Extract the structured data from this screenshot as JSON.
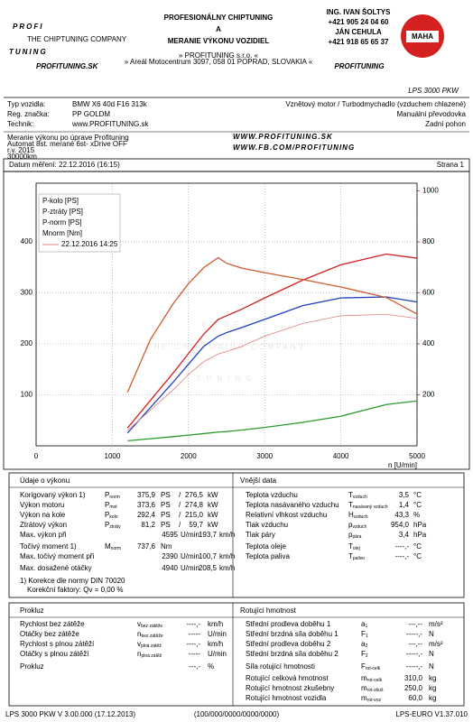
{
  "header": {
    "logo": [
      "PROFI",
      "TUNING"
    ],
    "logo_tagline": "THE CHIPTUNING COMPANY",
    "logo_small": "PROFITUNING.SK",
    "title": [
      "PROFESIONÁLNY CHIPTUNING",
      "A",
      "MERANIE VÝKONU VOZIDIEL"
    ],
    "address": [
      "» PROFITUNING s.r.o. «",
      "» Areál Motocentrum 3097, 058 01 POPRAD, SLOVAKIA «"
    ],
    "contacts": [
      "ING. IVAN ŠOLTYS",
      "+421 905 24 04 60",
      "JÁN CEHULA",
      "+421 918 65 65 37"
    ],
    "brand": "PROFITUNING",
    "maha": "MAHA",
    "model": "LPS 3000 PKW"
  },
  "vehicle": [
    [
      "Typ vozidla:",
      "BMW X6 40d F16 313k",
      "Vznětový motor / Turbodmychadlo (vzduchem chlazené)"
    ],
    [
      "Reg. značka:",
      "PP GOLDM",
      "Manuální převodovka"
    ],
    [
      "Technik:",
      "www.PROFITUNING.sk",
      "Zadní pohon"
    ]
  ],
  "notes": [
    "Meranie výkonu po úprave Profituning",
    "Automat 8st. merané 6st- xDrive OFF",
    "r.v. 2015",
    "30000km"
  ],
  "web": [
    "WWW.PROFITUNING.SK",
    "WWW.FB.COM/PROFITUNING"
  ],
  "date_bar": {
    "date": "Datum měření: 22.12.2016 (16:15)",
    "page": "Strana 1"
  },
  "chart_data": {
    "type": "line",
    "x_label": "n [U/min]",
    "watermark": [
      "PROFI",
      "TUNING",
      "THE CHIPTUNING COMPANY"
    ],
    "x": [
      1200,
      1500,
      1800,
      2000,
      2200,
      2390,
      2500,
      2700,
      3000,
      3500,
      4000,
      4595,
      5000
    ],
    "xlim": [
      0,
      5000
    ],
    "xticks": [
      0,
      1000,
      2000,
      3000,
      4000,
      5000
    ],
    "ylim": [
      0,
      515
    ],
    "yticks": [
      100,
      200,
      300,
      400
    ],
    "y2lim": [
      0,
      1030
    ],
    "y2ticks": [
      200,
      400,
      600,
      800,
      1000
    ],
    "y2color": "#d05a30",
    "grid": true,
    "legend": "top-left",
    "series": [
      {
        "name": "P-kolo [PS]",
        "color": "#1f3fbf",
        "values": [
          25,
          75,
          125,
          160,
          195,
          215,
          222,
          232,
          248,
          275,
          290,
          292,
          282
        ]
      },
      {
        "name": "P-ztráty [PS]",
        "color": "#2a9a2a",
        "values": [
          10,
          14,
          18,
          21,
          24,
          27,
          28,
          31,
          36,
          46,
          58,
          81,
          88
        ]
      },
      {
        "name": "P-norm [PS]",
        "color": "#d42020",
        "values": [
          35,
          89,
          143,
          181,
          219,
          248,
          255,
          268,
          290,
          325,
          355,
          376,
          368
        ]
      },
      {
        "name": "Mnorm [Nm]",
        "color": "#d05a30",
        "axis": "y2",
        "values": [
          210,
          417,
          558,
          636,
          699,
          738,
          716,
          697,
          679,
          652,
          623,
          582,
          517
        ]
      },
      {
        "name": "22.12.2016 14:25",
        "color": "#e08080",
        "thin": true,
        "values": [
          30,
          70,
          110,
          140,
          165,
          180,
          185,
          195,
          215,
          240,
          255,
          258,
          250
        ]
      }
    ]
  },
  "performance": {
    "title": "Údaje o výkonu",
    "rows": [
      {
        "label": "Korigovaný výkon 1)",
        "sym": "P",
        "sub": "norm",
        "value": "375,9",
        "unit": "PS",
        "sep": "/",
        "value2": "276,5",
        "unit2": "kW",
        "color": "#d42020"
      },
      {
        "label": "Výkon motoru",
        "sym": "P",
        "sub": "mot",
        "value": "373,6",
        "unit": "PS",
        "sep": "/",
        "value2": "274,8",
        "unit2": "kW",
        "color": "#d42020"
      },
      {
        "label": "Výkon na kole",
        "sym": "P",
        "sub": "kolo",
        "value": "292,4",
        "unit": "PS",
        "sep": "/",
        "value2": "215,0",
        "unit2": "kW",
        "color": "#1f3fbf"
      },
      {
        "label": "Ztrátový výkon",
        "sym": "P",
        "sub": "ztráty",
        "value": "81,2",
        "unit": "PS",
        "sep": "/",
        "value2": "59,7",
        "unit2": "kW",
        "color": "#2a9a2a"
      },
      {
        "label": "Max. výkon při",
        "value": "4595",
        "unit": "U/min",
        "value2": "193,7",
        "unit2": "km/h",
        "color": "#000000"
      },
      {
        "label": "Točivý moment 1)",
        "sym": "M",
        "sub": "norm",
        "value": "737,6",
        "unit": "Nm",
        "color": "#d42020"
      },
      {
        "label": "Max. točivý moment při",
        "value": "2390",
        "unit": "U/min",
        "value2": "100,7",
        "unit2": "km/h",
        "color": "#000000"
      },
      {
        "label": "Max. dosažené otáčky",
        "value": "4940",
        "unit": "U/min",
        "value2": "208,5",
        "unit2": "km/h",
        "color": "#000000"
      }
    ],
    "notes": [
      "1) Korekce dle normy DIN 70020",
      "Korekční faktory: Qv = 0,00 %"
    ]
  },
  "external": {
    "title": "Vnější data",
    "rows": [
      {
        "label": "Teplota vzduchu",
        "sym": "T",
        "sub": "vzduch",
        "value": "3,5",
        "unit": "°C"
      },
      {
        "label": "Teplota nasávaného vzduchu",
        "sym": "T",
        "sub": "nasávaný vzduch",
        "value": "1,4",
        "unit": "°C"
      },
      {
        "label": "Relativní vlhkost vzduchu",
        "sym": "H",
        "sub": "vzduch",
        "value": "43,3",
        "unit": "%"
      },
      {
        "label": "Tlak vzduchu",
        "sym": "p",
        "sub": "vzduch",
        "value": "954,0",
        "unit": "hPa"
      },
      {
        "label": "Tlak páry",
        "sym": "p",
        "sub": "pára",
        "value": "3,4",
        "unit": "hPa"
      },
      {
        "label": "Teplota oleje",
        "sym": "T",
        "sub": "olej",
        "value": "----,-",
        "unit": "°C"
      },
      {
        "label": "Teplota paliva",
        "sym": "T",
        "sub": "palivo",
        "value": "----,-",
        "unit": "°C"
      }
    ]
  },
  "slip": {
    "title": "Prokluz",
    "rows": [
      {
        "label": "Rychlost bez zátěže",
        "sym": "v",
        "sub": "bez zátěže",
        "value": "----,-",
        "unit": "km/h"
      },
      {
        "label": "Otáčky bez zátěže",
        "sym": "n",
        "sub": "bez zátěže",
        "value": "-----",
        "unit": "U/min"
      },
      {
        "label": "Rychlost s plnou zátěží",
        "sym": "v",
        "sub": "plná zátěž",
        "value": "----,-",
        "unit": "km/h"
      },
      {
        "label": "Otáčky s plnou zátěží",
        "sym": "n",
        "sub": "plná zátěž",
        "value": "-----",
        "unit": "U/min"
      },
      {
        "label": "Prokluz",
        "value": "---,-",
        "unit": "%"
      }
    ]
  },
  "rotating": {
    "title": "Rotujíci hmotnost",
    "rows": [
      {
        "label": "Střední prodleva doběhu 1",
        "sym": "a",
        "sub": "1",
        "value": "---,--",
        "unit": "m/s²"
      },
      {
        "label": "Střední brzdná síla doběhu 1",
        "sym": "F",
        "sub": "1",
        "value": "-----,-",
        "unit": "N"
      },
      {
        "label": "Střední prodleva doběhu 2",
        "sym": "a",
        "sub": "2",
        "value": "---,--",
        "unit": "m/s²"
      },
      {
        "label": "Střední brzdná síla doběhu 2",
        "sym": "F",
        "sub": "2",
        "value": "-----,-",
        "unit": "N"
      },
      {
        "label": "Síla rotující hmotnosti",
        "sym": "F",
        "sub": "rot-celk",
        "value": "-----,-",
        "unit": "N"
      },
      {
        "label": "Rotující celková hmotnost",
        "sym": "m",
        "sub": "rot-celk",
        "value": "310,0",
        "unit": "kg"
      },
      {
        "label": "Rotující hmotnost zkušebny",
        "sym": "m",
        "sub": "rot-zkuš",
        "value": "250,0",
        "unit": "kg"
      },
      {
        "label": "Rotující hmotnost vozidla",
        "sym": "m",
        "sub": "rot-voz",
        "value": "60,0",
        "unit": "kg"
      }
    ]
  },
  "footer": [
    "LPS 3000 PKW V 3.00.000 (17.12.2013)",
    "(100/000/0000/0000/0000)",
    "LPS-EURO V1.37.010"
  ]
}
